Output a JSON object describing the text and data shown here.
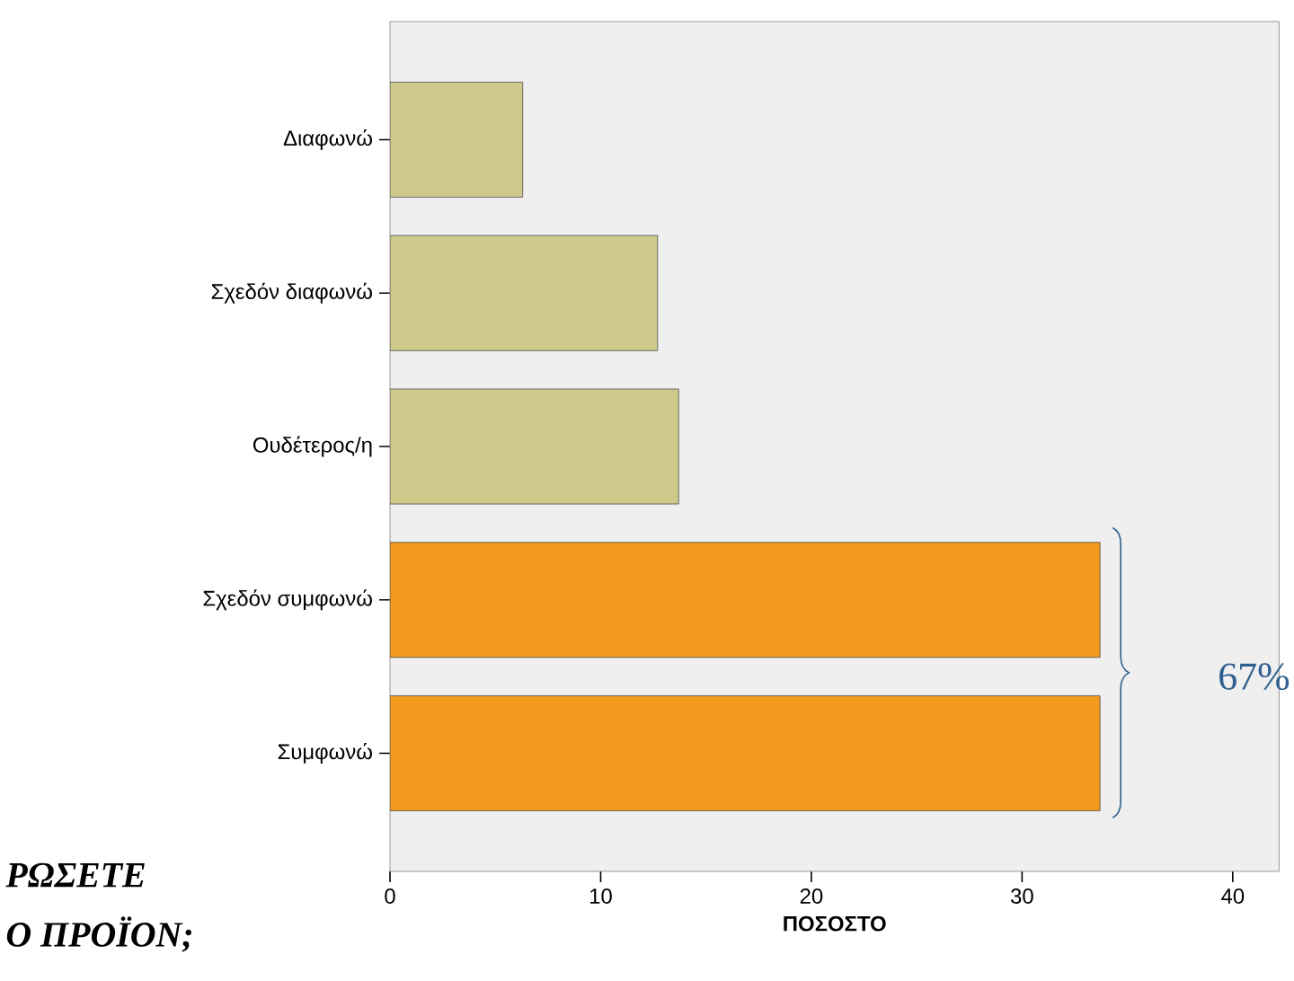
{
  "chart_data": {
    "type": "bar",
    "orientation": "horizontal",
    "categories": [
      "Διαφωνώ",
      "Σχεδόν διαφωνώ",
      "Ουδέτερος/η",
      "Σχεδόν συμφωνώ",
      "Συμφωνώ"
    ],
    "values": [
      6.3,
      12.7,
      13.7,
      33.7,
      33.7
    ],
    "colors": [
      "#cfca8c",
      "#cfca8c",
      "#cfca8c",
      "#f39a1e",
      "#f39a1e"
    ],
    "xlabel": "ΠΟΣΟΣΤΟ",
    "xlim": [
      0,
      42.2
    ],
    "xticks": [
      0,
      10,
      20,
      30,
      40
    ],
    "annotations": [
      "67%",
      "ΡΩΣΕΤΕ",
      "Ο ΠΡΟΪΟΝ;"
    ]
  }
}
